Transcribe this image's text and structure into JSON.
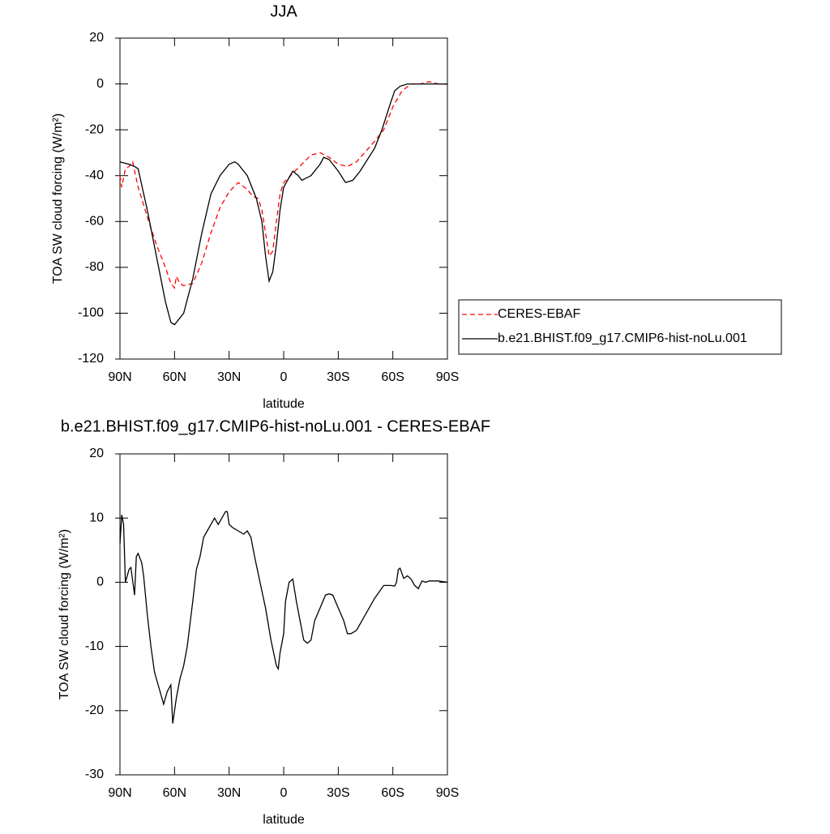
{
  "chart_data": [
    {
      "type": "line",
      "title": "JJA",
      "xlabel": "latitude",
      "ylabel": "TOA SW cloud forcing (W/m²)",
      "xlim": [
        90,
        -90
      ],
      "xticks": [
        {
          "value": 90,
          "label": "90N"
        },
        {
          "value": 60,
          "label": "60N"
        },
        {
          "value": 30,
          "label": "30N"
        },
        0,
        {
          "value": -30,
          "label": "30S"
        },
        {
          "value": -60,
          "label": "60S"
        },
        {
          "value": -90,
          "label": "90S"
        }
      ],
      "ylim": [
        -120,
        20
      ],
      "yticks": [
        -120,
        -100,
        -80,
        -60,
        -40,
        -20,
        0,
        20
      ],
      "legend": "right",
      "series": [
        {
          "name": "CERES-EBAF",
          "color": "#ff0000",
          "dash": "dashed",
          "x": [
            90,
            89,
            87,
            85,
            83,
            80,
            75,
            70,
            65,
            62,
            60,
            59,
            57,
            55,
            50,
            45,
            40,
            35,
            30,
            25,
            20,
            17,
            14,
            12,
            10,
            8,
            6,
            4,
            2,
            0,
            -5,
            -10,
            -15,
            -20,
            -25,
            -30,
            -35,
            -40,
            -50,
            -55,
            -60,
            -65,
            -70,
            -75,
            -80,
            -85,
            -90
          ],
          "values": [
            -40,
            -45,
            -37,
            -36,
            -34,
            -45,
            -58,
            -70,
            -80,
            -87,
            -89,
            -84,
            -87,
            -88,
            -87,
            -78,
            -65,
            -54,
            -47,
            -43,
            -46,
            -49,
            -50,
            -55,
            -65,
            -75,
            -73,
            -60,
            -48,
            -43,
            -39,
            -35,
            -31,
            -30,
            -32,
            -35,
            -36,
            -34,
            -25,
            -20,
            -10,
            -3,
            0,
            0,
            1,
            0,
            0
          ]
        },
        {
          "name": "b.e21.BHIST.f09_g17.CMIP6-hist-noLu.001",
          "color": "#000000",
          "dash": "solid",
          "x": [
            90,
            85,
            82,
            80,
            75,
            70,
            65,
            62,
            60,
            55,
            50,
            45,
            40,
            35,
            30,
            27,
            25,
            20,
            15,
            12,
            10,
            8,
            6,
            4,
            2,
            0,
            -5,
            -8,
            -10,
            -15,
            -20,
            -22,
            -25,
            -30,
            -34,
            -38,
            -42,
            -50,
            -54,
            -58,
            -61,
            -64,
            -68,
            -70,
            -75,
            -80,
            -90
          ],
          "values": [
            -34,
            -35,
            -36,
            -37,
            -55,
            -75,
            -95,
            -104,
            -105,
            -100,
            -85,
            -65,
            -48,
            -40,
            -35,
            -34,
            -35,
            -40,
            -50,
            -60,
            -75,
            -86,
            -82,
            -70,
            -55,
            -45,
            -38,
            -40,
            -42,
            -40,
            -35,
            -32,
            -33,
            -38,
            -43,
            -42,
            -38,
            -28,
            -20,
            -10,
            -3,
            -1,
            0,
            0,
            0,
            0,
            0
          ]
        }
      ]
    },
    {
      "type": "line",
      "title": "b.e21.BHIST.f09_g17.CMIP6-hist-noLu.001 - CERES-EBAF",
      "xlabel": "latitude",
      "ylabel": "TOA SW cloud forcing (W/m²)",
      "xlim": [
        90,
        -90
      ],
      "xticks": [
        {
          "value": 90,
          "label": "90N"
        },
        {
          "value": 60,
          "label": "60N"
        },
        {
          "value": 30,
          "label": "30N"
        },
        0,
        {
          "value": -30,
          "label": "30S"
        },
        {
          "value": -60,
          "label": "60S"
        },
        {
          "value": -90,
          "label": "90S"
        }
      ],
      "ylim": [
        -30,
        20
      ],
      "yticks": [
        -30,
        -20,
        -10,
        0,
        10,
        20
      ],
      "series": [
        {
          "color": "#000000",
          "dash": "solid",
          "x": [
            90,
            89,
            88,
            87,
            85,
            84,
            82,
            81,
            80,
            78,
            77,
            75,
            73,
            71,
            68,
            66,
            64,
            62,
            61,
            59,
            57,
            55,
            53,
            50,
            48,
            46,
            44,
            42,
            40,
            38,
            36,
            34,
            32,
            31,
            30,
            28,
            25,
            22,
            20,
            18,
            16,
            13,
            10,
            7,
            4,
            3,
            2,
            0,
            -1,
            -3,
            -5,
            -7,
            -9,
            -11,
            -13,
            -15,
            -17,
            -20,
            -23,
            -25,
            -27,
            -30,
            -33,
            -35,
            -37,
            -40,
            -43,
            -47,
            -50,
            -55,
            -57,
            -59,
            -61,
            -62,
            -63,
            -64,
            -66,
            -68,
            -70,
            -72,
            -74,
            -76,
            -78,
            -80,
            -85,
            -90
          ],
          "values": [
            6,
            10.5,
            9,
            0,
            2,
            2.3,
            -2,
            4,
            4.5,
            3,
            1,
            -5,
            -10,
            -14,
            -17,
            -19,
            -17,
            -16,
            -22,
            -18,
            -15,
            -13,
            -10,
            -3,
            2,
            4,
            7,
            8,
            9,
            10,
            9,
            10,
            11,
            11,
            9,
            8.5,
            8,
            7.5,
            8,
            7,
            4,
            0,
            -4,
            -9,
            -13,
            -13.5,
            -11,
            -8,
            -3,
            0,
            0.5,
            -3,
            -6,
            -9,
            -9.5,
            -9,
            -6,
            -4,
            -2,
            -1.8,
            -2,
            -4,
            -6,
            -8,
            -8,
            -7.5,
            -6,
            -4,
            -2.5,
            -0.5,
            -0.5,
            -0.5,
            -0.6,
            0,
            2,
            2.2,
            0.6,
            1,
            0.5,
            -0.5,
            -1,
            0.2,
            0,
            0.2,
            0.2,
            0
          ]
        }
      ]
    }
  ]
}
